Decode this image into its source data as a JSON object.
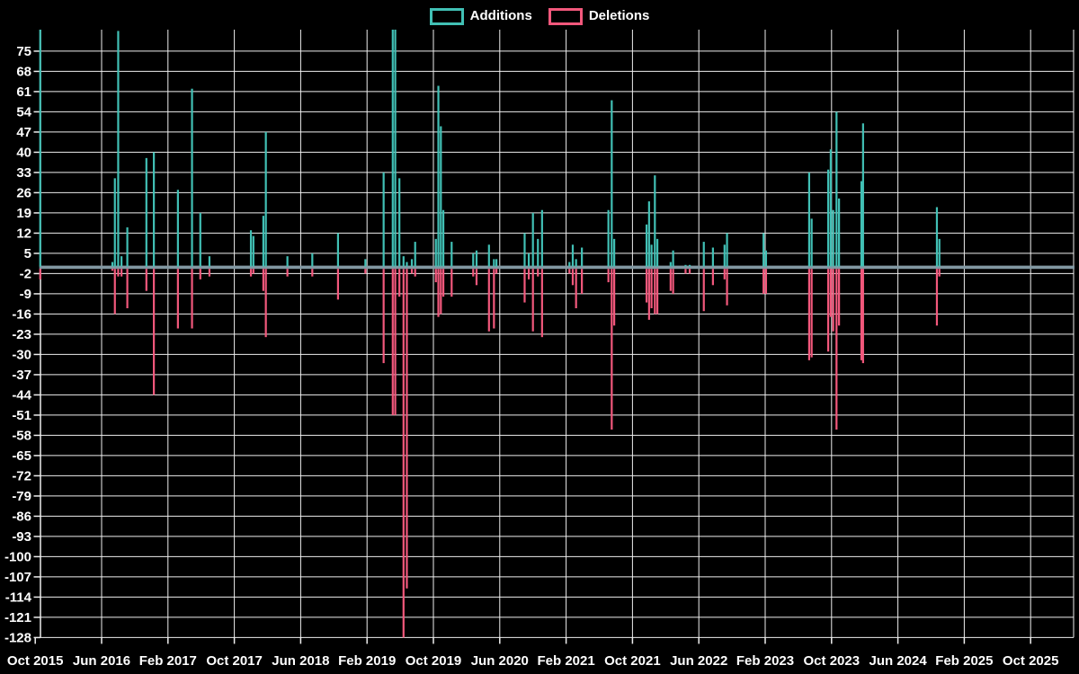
{
  "legend": {
    "additions_label": "Additions",
    "deletions_label": "Deletions"
  },
  "colors": {
    "additions": "#41c0b5",
    "deletions": "#f2587c",
    "zero_line": "#8298a2",
    "grid": "#eeeeee",
    "background": "#000000",
    "text": "#ffffff"
  },
  "chart_data": {
    "type": "line",
    "title": "",
    "legend_position": "top",
    "grid": true,
    "series_names": [
      "Additions",
      "Deletions"
    ],
    "x_tick_labels": [
      "Oct 2015",
      "Jun 2016",
      "Feb 2017",
      "Oct 2017",
      "Jun 2018",
      "Feb 2019",
      "Oct 2019",
      "Jun 2020",
      "Feb 2021",
      "Oct 2021",
      "Jun 2022",
      "Feb 2023",
      "Oct 2023",
      "Jun 2024",
      "Feb 2025",
      "Oct 2025"
    ],
    "x_tick_step_months": 8,
    "y_ticks": [
      75,
      68,
      61,
      54,
      47,
      40,
      33,
      26,
      19,
      12,
      5,
      -2,
      -9,
      -16,
      -23,
      -30,
      -37,
      -44,
      -51,
      -58,
      -65,
      -72,
      -79,
      -86,
      -93,
      -100,
      -107,
      -114,
      -121,
      -128
    ],
    "y_min": -128,
    "y_max": 75,
    "y_step": 7,
    "points_note": "m = months since Oct 2015; a = additions; d = deletions; values above 82 are clipped by the plot top",
    "points": [
      {
        "m": 0.6,
        "date": "2015-10",
        "a": 85,
        "d": -4
      },
      {
        "m": 9.3,
        "date": "2016-07",
        "a": 2,
        "d": -1
      },
      {
        "m": 9.6,
        "date": "2016-07",
        "a": 31,
        "d": -16
      },
      {
        "m": 10.0,
        "date": "2016-08",
        "a": 82,
        "d": -3
      },
      {
        "m": 10.4,
        "date": "2016-08",
        "a": 4,
        "d": -3
      },
      {
        "m": 11.1,
        "date": "2016-09",
        "a": 14,
        "d": -14
      },
      {
        "m": 13.4,
        "date": "2016-11",
        "a": 38,
        "d": -8
      },
      {
        "m": 14.3,
        "date": "2016-12",
        "a": 40,
        "d": -44
      },
      {
        "m": 17.2,
        "date": "2017-03",
        "a": 27,
        "d": -21
      },
      {
        "m": 18.9,
        "date": "2017-05",
        "a": 62,
        "d": -21
      },
      {
        "m": 19.9,
        "date": "2017-06",
        "a": 19,
        "d": -4
      },
      {
        "m": 21.0,
        "date": "2017-07",
        "a": 4,
        "d": -3
      },
      {
        "m": 26.0,
        "date": "2017-12",
        "a": 13,
        "d": -3
      },
      {
        "m": 26.3,
        "date": "2017-12",
        "a": 11,
        "d": -2
      },
      {
        "m": 27.5,
        "date": "2018-01",
        "a": 18,
        "d": -8
      },
      {
        "m": 27.8,
        "date": "2018-02",
        "a": 47,
        "d": -24
      },
      {
        "m": 30.4,
        "date": "2018-04",
        "a": 4,
        "d": -3
      },
      {
        "m": 33.4,
        "date": "2018-07",
        "a": 5,
        "d": -3
      },
      {
        "m": 36.5,
        "date": "2018-10",
        "a": 12,
        "d": -11
      },
      {
        "m": 39.8,
        "date": "2019-01",
        "a": 3,
        "d": -2
      },
      {
        "m": 42.0,
        "date": "2019-04",
        "a": 33,
        "d": -33
      },
      {
        "m": 43.1,
        "date": "2019-05",
        "a": 85,
        "d": -51
      },
      {
        "m": 43.4,
        "date": "2019-05",
        "a": 85,
        "d": -51
      },
      {
        "m": 43.9,
        "date": "2019-06",
        "a": 31,
        "d": -10
      },
      {
        "m": 44.4,
        "date": "2019-06",
        "a": 4,
        "d": -128
      },
      {
        "m": 44.8,
        "date": "2019-07",
        "a": 2,
        "d": -111
      },
      {
        "m": 45.4,
        "date": "2019-07",
        "a": 3,
        "d": -2
      },
      {
        "m": 45.8,
        "date": "2019-08",
        "a": 9,
        "d": -3
      },
      {
        "m": 48.3,
        "date": "2019-10",
        "a": 10,
        "d": -5
      },
      {
        "m": 48.6,
        "date": "2019-10",
        "a": 63,
        "d": -17
      },
      {
        "m": 48.9,
        "date": "2019-11",
        "a": 49,
        "d": -16
      },
      {
        "m": 49.2,
        "date": "2019-11",
        "a": 20,
        "d": -10
      },
      {
        "m": 50.2,
        "date": "2019-12",
        "a": 9,
        "d": -10
      },
      {
        "m": 52.8,
        "date": "2020-02",
        "a": 5,
        "d": -3
      },
      {
        "m": 53.2,
        "date": "2020-03",
        "a": 6,
        "d": -6
      },
      {
        "m": 54.7,
        "date": "2020-04",
        "a": 8,
        "d": -22
      },
      {
        "m": 55.3,
        "date": "2020-05",
        "a": 3,
        "d": -21
      },
      {
        "m": 55.6,
        "date": "2020-05",
        "a": 3,
        "d": -2
      },
      {
        "m": 59.0,
        "date": "2020-09",
        "a": 12,
        "d": -12
      },
      {
        "m": 59.5,
        "date": "2020-09",
        "a": 5,
        "d": -4
      },
      {
        "m": 60.0,
        "date": "2020-10",
        "a": 19,
        "d": -22
      },
      {
        "m": 60.6,
        "date": "2020-10",
        "a": 10,
        "d": -3
      },
      {
        "m": 61.1,
        "date": "2020-11",
        "a": 20,
        "d": -24
      },
      {
        "m": 64.4,
        "date": "2021-02",
        "a": 2,
        "d": -2
      },
      {
        "m": 64.8,
        "date": "2021-02",
        "a": 8,
        "d": -6
      },
      {
        "m": 65.2,
        "date": "2021-03",
        "a": 3,
        "d": -14
      },
      {
        "m": 65.9,
        "date": "2021-03",
        "a": 7,
        "d": -9
      },
      {
        "m": 69.1,
        "date": "2021-07",
        "a": 20,
        "d": -5
      },
      {
        "m": 69.5,
        "date": "2021-07",
        "a": 58,
        "d": -56
      },
      {
        "m": 69.8,
        "date": "2021-08",
        "a": 10,
        "d": -20
      },
      {
        "m": 73.7,
        "date": "2021-11",
        "a": 15,
        "d": -12
      },
      {
        "m": 74.0,
        "date": "2021-12",
        "a": 23,
        "d": -18
      },
      {
        "m": 74.3,
        "date": "2021-12",
        "a": 8,
        "d": -14
      },
      {
        "m": 74.7,
        "date": "2022-01",
        "a": 32,
        "d": -16
      },
      {
        "m": 75.0,
        "date": "2022-01",
        "a": 10,
        "d": -16
      },
      {
        "m": 76.6,
        "date": "2022-02",
        "a": 2,
        "d": -8
      },
      {
        "m": 76.9,
        "date": "2022-03",
        "a": 6,
        "d": -9
      },
      {
        "m": 78.4,
        "date": "2022-04",
        "a": 1,
        "d": -2
      },
      {
        "m": 78.9,
        "date": "2022-05",
        "a": 1,
        "d": -2
      },
      {
        "m": 80.6,
        "date": "2022-06",
        "a": 9,
        "d": -15
      },
      {
        "m": 81.7,
        "date": "2022-07",
        "a": 7,
        "d": -6
      },
      {
        "m": 83.1,
        "date": "2022-09",
        "a": 8,
        "d": -4
      },
      {
        "m": 83.4,
        "date": "2022-09",
        "a": 12,
        "d": -13
      },
      {
        "m": 87.8,
        "date": "2023-01",
        "a": 12,
        "d": -9
      },
      {
        "m": 88.1,
        "date": "2023-02",
        "a": 6,
        "d": -9
      },
      {
        "m": 93.3,
        "date": "2023-07",
        "a": 33,
        "d": -32
      },
      {
        "m": 93.6,
        "date": "2023-07",
        "a": 17,
        "d": -31
      },
      {
        "m": 95.6,
        "date": "2023-09",
        "a": 34,
        "d": -29
      },
      {
        "m": 95.9,
        "date": "2023-10",
        "a": 41,
        "d": -17
      },
      {
        "m": 96.2,
        "date": "2023-10",
        "a": 20,
        "d": -22
      },
      {
        "m": 96.6,
        "date": "2023-10",
        "a": 54,
        "d": -56
      },
      {
        "m": 96.9,
        "date": "2023-11",
        "a": 24,
        "d": -20
      },
      {
        "m": 99.6,
        "date": "2024-01",
        "a": 30,
        "d": -32
      },
      {
        "m": 99.8,
        "date": "2024-02",
        "a": 50,
        "d": -33
      },
      {
        "m": 108.7,
        "date": "2024-11",
        "a": 21,
        "d": -20
      },
      {
        "m": 109.0,
        "date": "2024-11",
        "a": 10,
        "d": -3
      }
    ]
  }
}
